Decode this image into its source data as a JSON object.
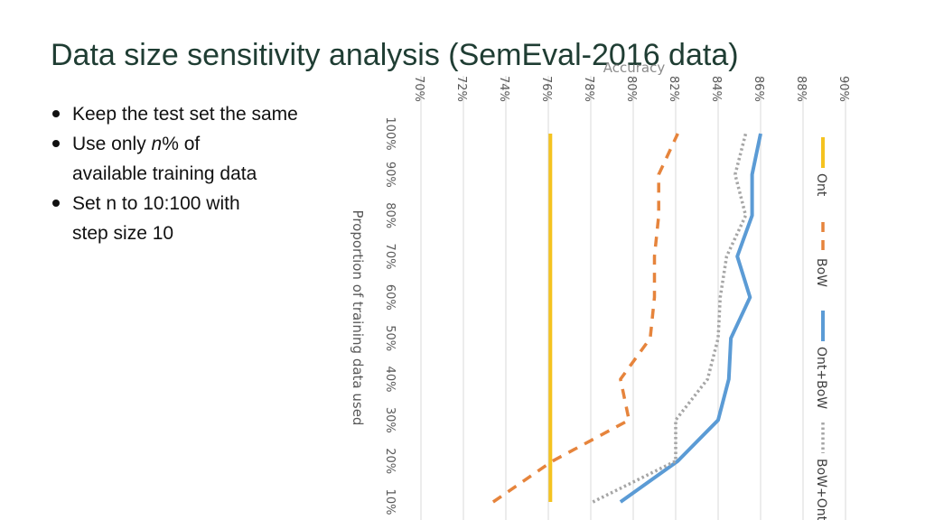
{
  "slide": {
    "title": "Data size sensitivity analysis (SemEval-2016 data)",
    "bullets": [
      {
        "pre": "Keep the test set the same",
        "em": "",
        "post": "",
        "line2": ""
      },
      {
        "pre": "Use only ",
        "em": "n",
        "post": "% of",
        "line2": "available training data"
      },
      {
        "pre": "Set n to 10:100 with",
        "em": "",
        "post": "",
        "line2": "step size 10"
      }
    ]
  },
  "chart_data": {
    "type": "line",
    "orientation": "rotated-90",
    "title": "Accuracy",
    "xlabel": "Proportion of training data used",
    "ylabel": "",
    "x": [
      "10%",
      "20%",
      "30%",
      "40%",
      "50%",
      "60%",
      "70%",
      "80%",
      "90%",
      "100%"
    ],
    "y_ticks": [
      "70%",
      "72%",
      "74%",
      "76%",
      "78%",
      "80%",
      "82%",
      "84%",
      "86%",
      "88%",
      "90%"
    ],
    "ylim": [
      70,
      90
    ],
    "grid": true,
    "legend_position": "right",
    "series": [
      {
        "name": "Ont",
        "values": [
          76.1,
          76.1,
          76.1,
          76.1,
          76.1,
          76.1,
          76.1,
          76.1,
          76.1,
          76.1
        ],
        "color": "#f5c320",
        "style": "solid"
      },
      {
        "name": "BoW",
        "values": [
          73.4,
          76.2,
          79.8,
          79.4,
          80.8,
          81.0,
          81.0,
          81.2,
          81.2,
          82.1
        ],
        "color": "#e6843c",
        "style": "dashed"
      },
      {
        "name": "Ont+BoW",
        "values": [
          79.4,
          82.1,
          84.0,
          84.5,
          84.6,
          85.5,
          84.9,
          85.6,
          85.6,
          86.0
        ],
        "color": "#5b9bd5",
        "style": "solid"
      },
      {
        "name": "BoW+Ont",
        "values": [
          78.1,
          82.0,
          82.0,
          83.5,
          84.0,
          84.1,
          84.4,
          85.3,
          84.8,
          85.3
        ],
        "color": "#a6a6a6",
        "style": "dotted"
      }
    ]
  }
}
